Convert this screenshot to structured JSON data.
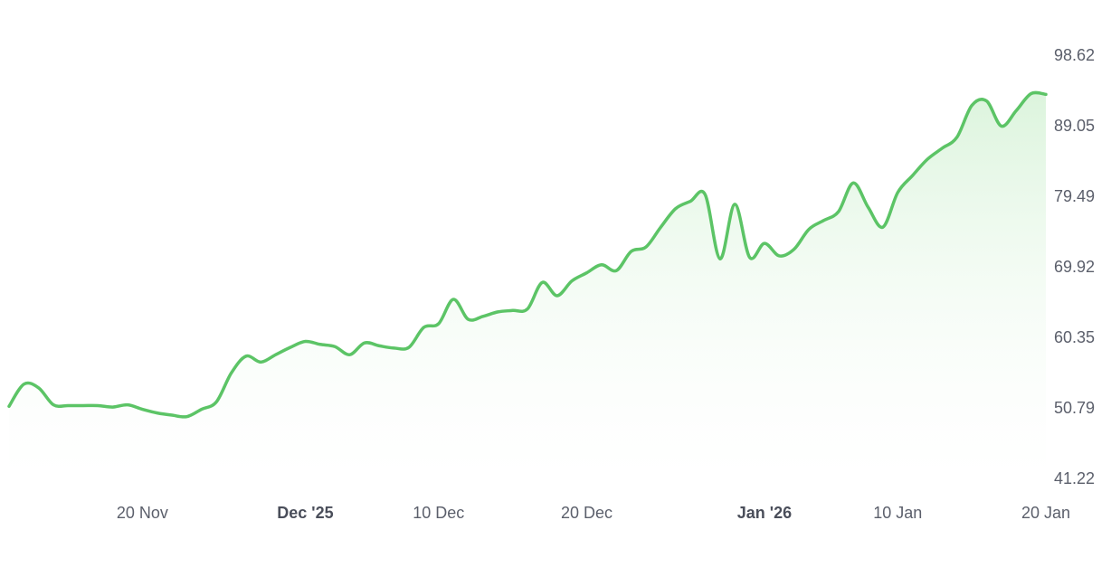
{
  "chart_data": {
    "type": "area",
    "title": "",
    "xlabel": "",
    "ylabel": "",
    "ylim": [
      41.22,
      98.62
    ],
    "xlim": [
      "2025-11-11",
      "2026-01-20"
    ],
    "grid": false,
    "legend": "none",
    "y_ticks": [
      "98.62",
      "89.05",
      "79.49",
      "69.92",
      "60.35",
      "50.79",
      "41.22"
    ],
    "x_ticks": [
      {
        "label": "20 Nov",
        "date": "2025-11-20",
        "bold": false
      },
      {
        "label": "Dec '25",
        "date": "2025-12-01",
        "bold": true
      },
      {
        "label": "10 Dec",
        "date": "2025-12-10",
        "bold": false
      },
      {
        "label": "20 Dec",
        "date": "2025-12-20",
        "bold": false
      },
      {
        "label": "Jan '26",
        "date": "2026-01-01",
        "bold": true
      },
      {
        "label": "10 Jan",
        "date": "2026-01-10",
        "bold": false
      },
      {
        "label": "20 Jan",
        "date": "2026-01-20",
        "bold": false
      }
    ],
    "colors": {
      "line": "#5cc466",
      "fill_top": "#d8f3d9",
      "fill_bottom": "#ffffff",
      "tick_text": "#5b5f6b"
    },
    "series": [
      {
        "x": [
          "2025-11-11",
          "2025-11-12",
          "2025-11-13",
          "2025-11-14",
          "2025-11-15",
          "2025-11-16",
          "2025-11-17",
          "2025-11-18",
          "2025-11-19",
          "2025-11-20",
          "2025-11-21",
          "2025-11-22",
          "2025-11-23",
          "2025-11-24",
          "2025-11-25",
          "2025-11-26",
          "2025-11-27",
          "2025-11-28",
          "2025-11-29",
          "2025-11-30",
          "2025-12-01",
          "2025-12-02",
          "2025-12-03",
          "2025-12-04",
          "2025-12-05",
          "2025-12-06",
          "2025-12-07",
          "2025-12-08",
          "2025-12-09",
          "2025-12-10",
          "2025-12-11",
          "2025-12-12",
          "2025-12-13",
          "2025-12-14",
          "2025-12-15",
          "2025-12-16",
          "2025-12-17",
          "2025-12-18",
          "2025-12-19",
          "2025-12-20",
          "2025-12-21",
          "2025-12-22",
          "2025-12-23",
          "2025-12-24",
          "2025-12-25",
          "2025-12-26",
          "2025-12-27",
          "2025-12-28",
          "2025-12-29",
          "2025-12-30",
          "2025-12-31",
          "2026-01-01",
          "2026-01-02",
          "2026-01-03",
          "2026-01-04",
          "2026-01-05",
          "2026-01-06",
          "2026-01-07",
          "2026-01-08",
          "2026-01-09",
          "2026-01-10",
          "2026-01-11",
          "2026-01-12",
          "2026-01-13",
          "2026-01-14",
          "2026-01-15",
          "2026-01-16",
          "2026-01-17",
          "2026-01-18",
          "2026-01-19",
          "2026-01-20"
        ],
        "values": [
          51.0,
          54.0,
          53.5,
          51.2,
          51.1,
          51.1,
          51.1,
          50.9,
          51.2,
          50.6,
          50.1,
          49.8,
          49.6,
          50.6,
          51.6,
          55.5,
          57.8,
          57.0,
          58.0,
          59.0,
          59.8,
          59.4,
          59.1,
          58.0,
          59.6,
          59.2,
          58.9,
          59.0,
          61.7,
          62.2,
          65.5,
          62.8,
          63.2,
          63.8,
          64.0,
          64.2,
          67.8,
          66.0,
          68.0,
          69.1,
          70.2,
          69.4,
          72.0,
          72.6,
          75.3,
          77.8,
          78.8,
          79.7,
          71.0,
          78.4,
          71.2,
          73.1,
          71.4,
          72.3,
          75.0,
          76.2,
          77.4,
          81.3,
          78.0,
          75.3,
          80.0,
          82.3,
          84.5,
          86.0,
          87.5,
          91.8,
          92.4,
          89.0,
          91.1,
          93.4,
          93.3
        ]
      }
    ]
  }
}
